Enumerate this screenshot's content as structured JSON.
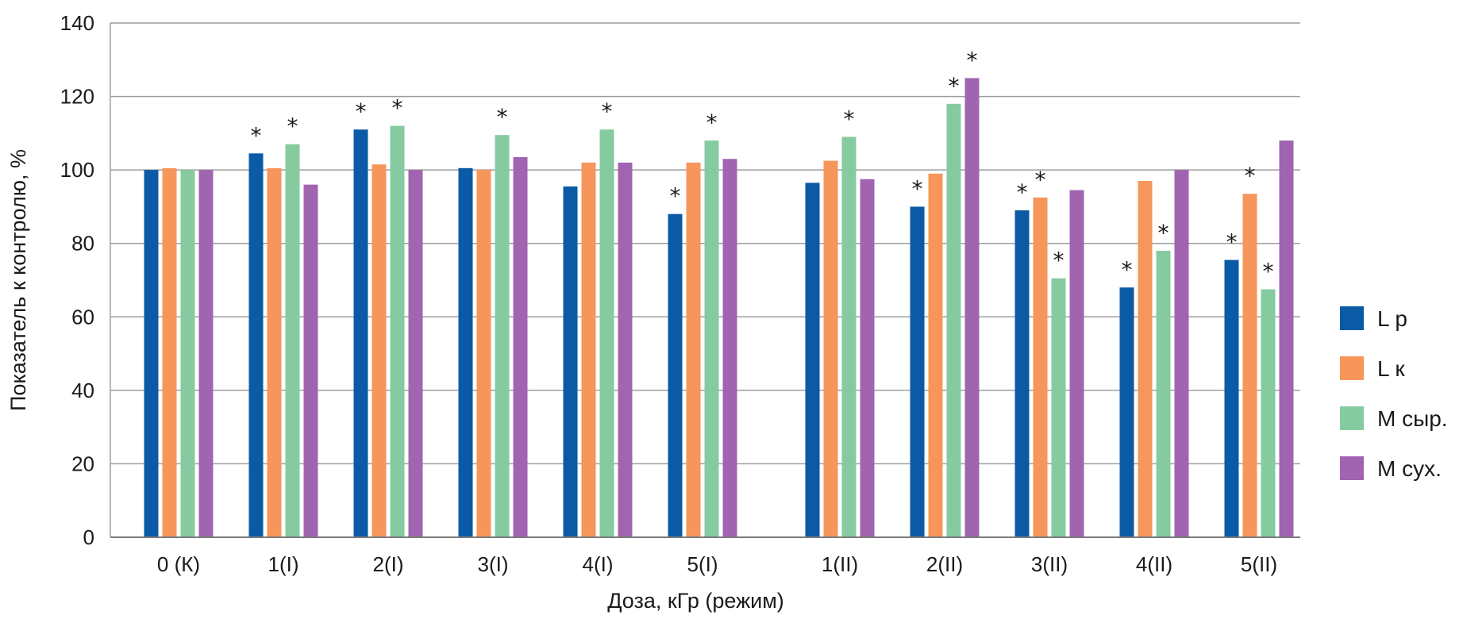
{
  "chart_data": {
    "type": "bar",
    "title": "",
    "xlabel": "Доза, кГр (режим)",
    "ylabel": "Показатель к контролю, %",
    "ylim": [
      0,
      140
    ],
    "yticks": [
      "0",
      "20",
      "40",
      "60",
      "80",
      "100",
      "120",
      "140"
    ],
    "grid": true,
    "legend_position": "right",
    "categories": [
      "0 (К)",
      "1(I)",
      "2(I)",
      "3(I)",
      "4(I)",
      "5(I)",
      "1(II)",
      "2(II)",
      "3(II)",
      "4(II)",
      "5(II)"
    ],
    "series": [
      {
        "name": "L р",
        "color": "#0b5aa6",
        "values": [
          100,
          104.5,
          111,
          100.5,
          95.5,
          88,
          96.5,
          90,
          89,
          68,
          75.5
        ],
        "significant": [
          false,
          true,
          true,
          false,
          false,
          true,
          false,
          true,
          true,
          true,
          true
        ]
      },
      {
        "name": "L к",
        "color": "#f7965a",
        "values": [
          100.5,
          100.5,
          101.5,
          100,
          102,
          102,
          102.5,
          99,
          92.5,
          97,
          93.5
        ],
        "significant": [
          false,
          false,
          false,
          false,
          false,
          false,
          false,
          false,
          true,
          false,
          true
        ]
      },
      {
        "name": "М сыр.",
        "color": "#86cba0",
        "values": [
          100,
          107,
          112,
          109.5,
          111,
          108,
          109,
          118,
          70.5,
          78,
          67.5
        ],
        "significant": [
          false,
          true,
          true,
          true,
          true,
          true,
          true,
          true,
          true,
          true,
          true
        ]
      },
      {
        "name": "М сух.",
        "color": "#a064b0",
        "values": [
          100,
          96,
          100,
          103.5,
          102,
          103,
          97.5,
          125,
          94.5,
          100,
          108
        ],
        "significant": [
          false,
          false,
          false,
          false,
          false,
          false,
          false,
          true,
          false,
          false,
          false
        ]
      }
    ],
    "significance_marker": "*"
  }
}
